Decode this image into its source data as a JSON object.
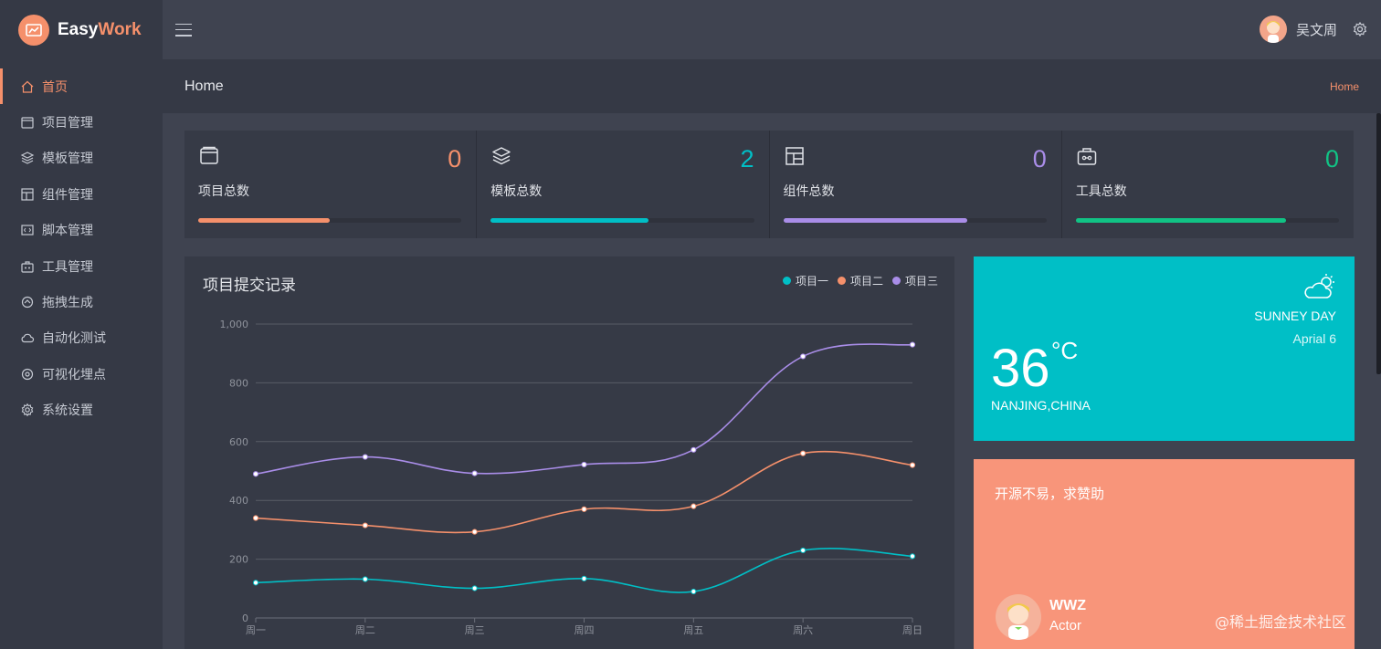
{
  "brand": {
    "name_part1": "Easy",
    "name_part2": "Work"
  },
  "sidebar": {
    "items": [
      {
        "label": "首页",
        "icon": "home-icon",
        "active": true
      },
      {
        "label": "项目管理",
        "icon": "folder-icon"
      },
      {
        "label": "模板管理",
        "icon": "layers-icon"
      },
      {
        "label": "组件管理",
        "icon": "layout-icon"
      },
      {
        "label": "脚本管理",
        "icon": "code-icon"
      },
      {
        "label": "工具管理",
        "icon": "toolbox-icon"
      },
      {
        "label": "拖拽生成",
        "icon": "drag-icon"
      },
      {
        "label": "自动化测试",
        "icon": "cloud-icon"
      },
      {
        "label": "可视化埋点",
        "icon": "target-icon"
      },
      {
        "label": "系统设置",
        "icon": "gear-icon"
      }
    ]
  },
  "topbar": {
    "user_name": "吴文周"
  },
  "page_header": {
    "title": "Home",
    "breadcrumb": "Home"
  },
  "stats": [
    {
      "label": "项目总数",
      "value": "0",
      "color": "#f5906b",
      "progress": 0.5,
      "icon": "folder-icon"
    },
    {
      "label": "模板总数",
      "value": "2",
      "color": "#00bfc6",
      "progress": 0.6,
      "icon": "layers-icon"
    },
    {
      "label": "组件总数",
      "value": "0",
      "color": "#a98de8",
      "progress": 0.7,
      "icon": "layout-icon"
    },
    {
      "label": "工具总数",
      "value": "0",
      "color": "#11c385",
      "progress": 0.8,
      "icon": "toolbox-icon"
    }
  ],
  "chart": {
    "title": "项目提交记录"
  },
  "chart_data": {
    "type": "line",
    "categories": [
      "周一",
      "周二",
      "周三",
      "周四",
      "周五",
      "周六",
      "周日"
    ],
    "series": [
      {
        "name": "项目一",
        "color": "#00bfc6",
        "values": [
          120,
          132,
          101,
          134,
          90,
          230,
          210
        ]
      },
      {
        "name": "项目二",
        "color": "#f5906b",
        "values": [
          340,
          315,
          293,
          370,
          380,
          560,
          520
        ]
      },
      {
        "name": "项目三",
        "color": "#a98de8",
        "values": [
          490,
          548,
          492,
          522,
          572,
          890,
          930
        ]
      }
    ],
    "ylim": [
      0,
      1000
    ],
    "yticks": [
      "0",
      "200",
      "400",
      "600",
      "800",
      "1,000"
    ],
    "grid": true,
    "smooth": true,
    "legend": "top-right"
  },
  "weather": {
    "condition": "SUNNEY DAY",
    "date": "Aprial 6",
    "temperature": "36",
    "unit": "°C",
    "city": "NANJING,CHINA"
  },
  "sponsor": {
    "message": "开源不易，求赞助",
    "name": "WWZ",
    "role": "Actor"
  },
  "watermark": "@稀土掘金技术社区"
}
